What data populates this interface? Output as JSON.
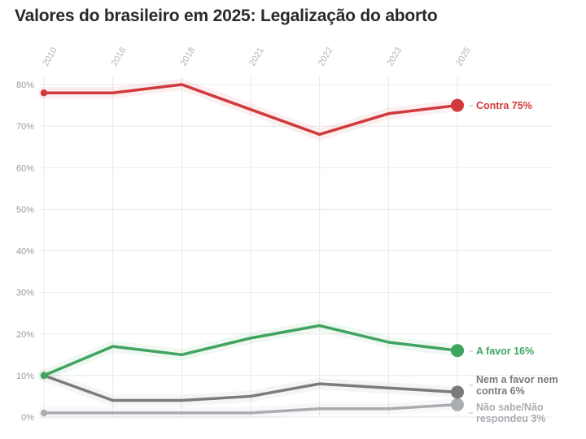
{
  "chart_data": {
    "type": "line",
    "title": "Valores do brasileiro em 2025: Legalização do aborto",
    "xlabel": "",
    "ylabel": "",
    "categories": [
      "2010",
      "2016",
      "2018",
      "2021",
      "2022",
      "2023",
      "2025"
    ],
    "ylim": [
      0,
      80
    ],
    "yticks": [
      0,
      10,
      20,
      30,
      40,
      50,
      60,
      70,
      80
    ],
    "ytick_labels": [
      "0%",
      "10%",
      "20%",
      "30%",
      "40%",
      "50%",
      "60%",
      "70%",
      "80%"
    ],
    "grid": true,
    "legend": "direct labels at line ends (right)",
    "series": [
      {
        "name": "Contra",
        "values": [
          78,
          78,
          80,
          74,
          68,
          73,
          75
        ],
        "color": "#d1393b",
        "label_lines": [
          "Contra 75%"
        ]
      },
      {
        "name": "A favor",
        "values": [
          10,
          17,
          15,
          19,
          22,
          18,
          16
        ],
        "color": "#3fa45f",
        "label_lines": [
          "A favor 16%"
        ]
      },
      {
        "name": "Nem a favor nem contra",
        "values": [
          10,
          4,
          4,
          5,
          8,
          7,
          6
        ],
        "color": "#7b7b7b",
        "label_lines": [
          "Nem a favor nem",
          "contra 6%"
        ]
      },
      {
        "name": "Não sabe/Não respondeu",
        "values": [
          1,
          1,
          1,
          1,
          2,
          2,
          3
        ],
        "color": "#a9acb1",
        "label_lines": [
          "Não sabe/Não",
          "respondeu 3%"
        ]
      }
    ]
  }
}
